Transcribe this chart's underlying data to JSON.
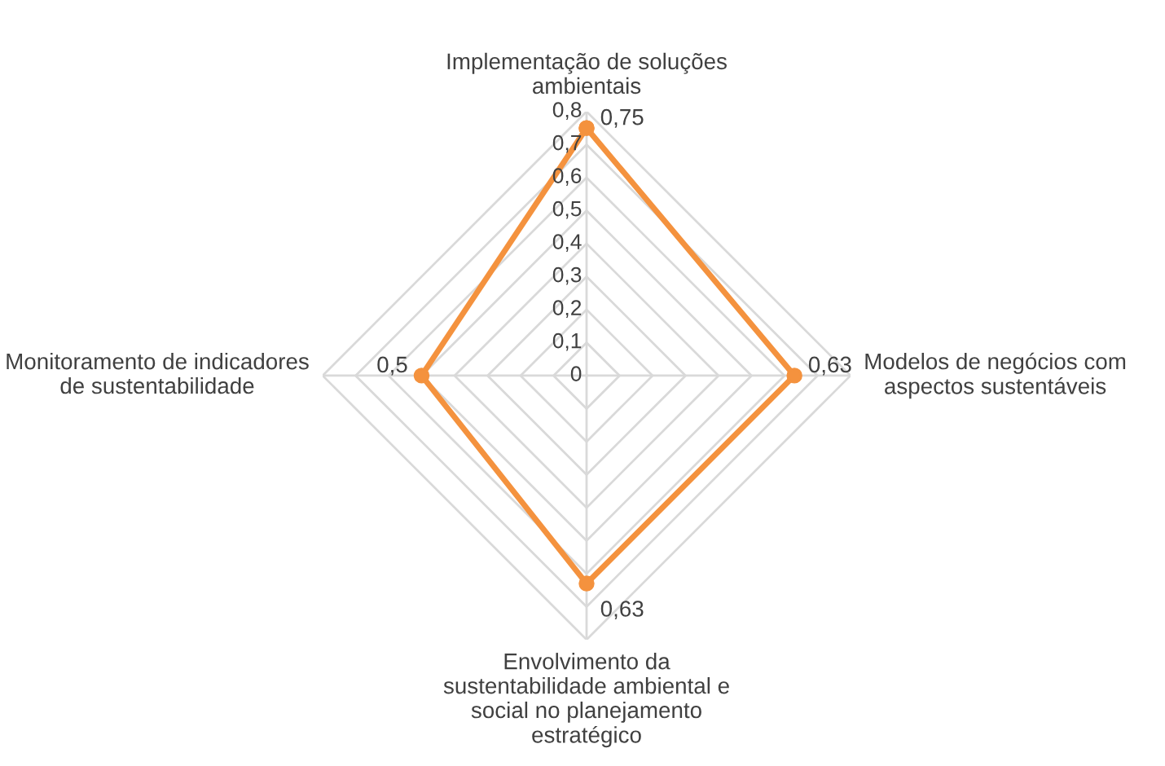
{
  "chart_data": {
    "type": "radar",
    "categories": [
      "Implementação de soluções\nambientais",
      "Modelos de negócios com\naspectos sustentáveis",
      "Envolvimento da\nsustentabilidade ambiental e\nsocial no planejamento\nestratégico",
      "Monitoramento de indicadores\nde sustentabilidade"
    ],
    "series": [
      {
        "color": "#f4923e",
        "values": [
          0.75,
          0.63,
          0.63,
          0.5
        ],
        "value_labels": [
          "0,75",
          "0,63",
          "0,63",
          "0,5"
        ]
      }
    ],
    "ylim": [
      0,
      0.8
    ],
    "yticks": [
      {
        "value": 0,
        "label": "0"
      },
      {
        "value": 0.1,
        "label": "0,1"
      },
      {
        "value": 0.2,
        "label": "0,2"
      },
      {
        "value": 0.3,
        "label": "0,3"
      },
      {
        "value": 0.4,
        "label": "0,4"
      },
      {
        "value": 0.5,
        "label": "0,5"
      },
      {
        "value": 0.6,
        "label": "0,6"
      },
      {
        "value": 0.7,
        "label": "0,7"
      },
      {
        "value": 0.8,
        "label": "0,8"
      }
    ],
    "marker": "circle",
    "grid": true,
    "legend": false
  }
}
